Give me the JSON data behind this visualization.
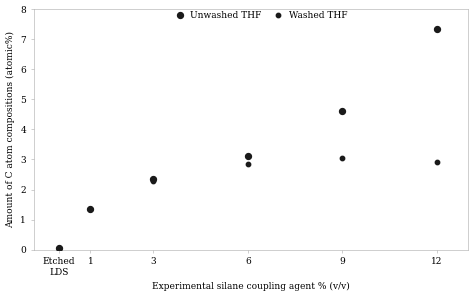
{
  "x_positions": [
    0,
    1,
    3,
    6,
    9,
    12
  ],
  "x_tick_labels": [
    "Etched\nLDS",
    "1",
    "3",
    "6",
    "9",
    "12"
  ],
  "unwashed_THF": [
    0.05,
    1.35,
    2.35,
    3.1,
    4.6,
    7.35
  ],
  "washed_THF": [
    0.05,
    1.35,
    2.3,
    2.85,
    3.05,
    2.9
  ],
  "color": "#1a1a1a",
  "xlabel": "Experimental silane coupling agent % (v/v)",
  "ylabel": "Amount of C atom compositions (atomic%)",
  "ylim": [
    0,
    8
  ],
  "yticks": [
    0,
    1,
    2,
    3,
    4,
    5,
    6,
    7,
    8
  ],
  "legend_unwashed": "Unwashed THF",
  "legend_washed": "Washed THF",
  "bg_color": "#ffffff",
  "unwashed_marker_size": 18,
  "washed_marker_size": 10,
  "axis_fontsize": 6.5,
  "tick_fontsize": 6.5,
  "legend_fontsize": 6.5
}
